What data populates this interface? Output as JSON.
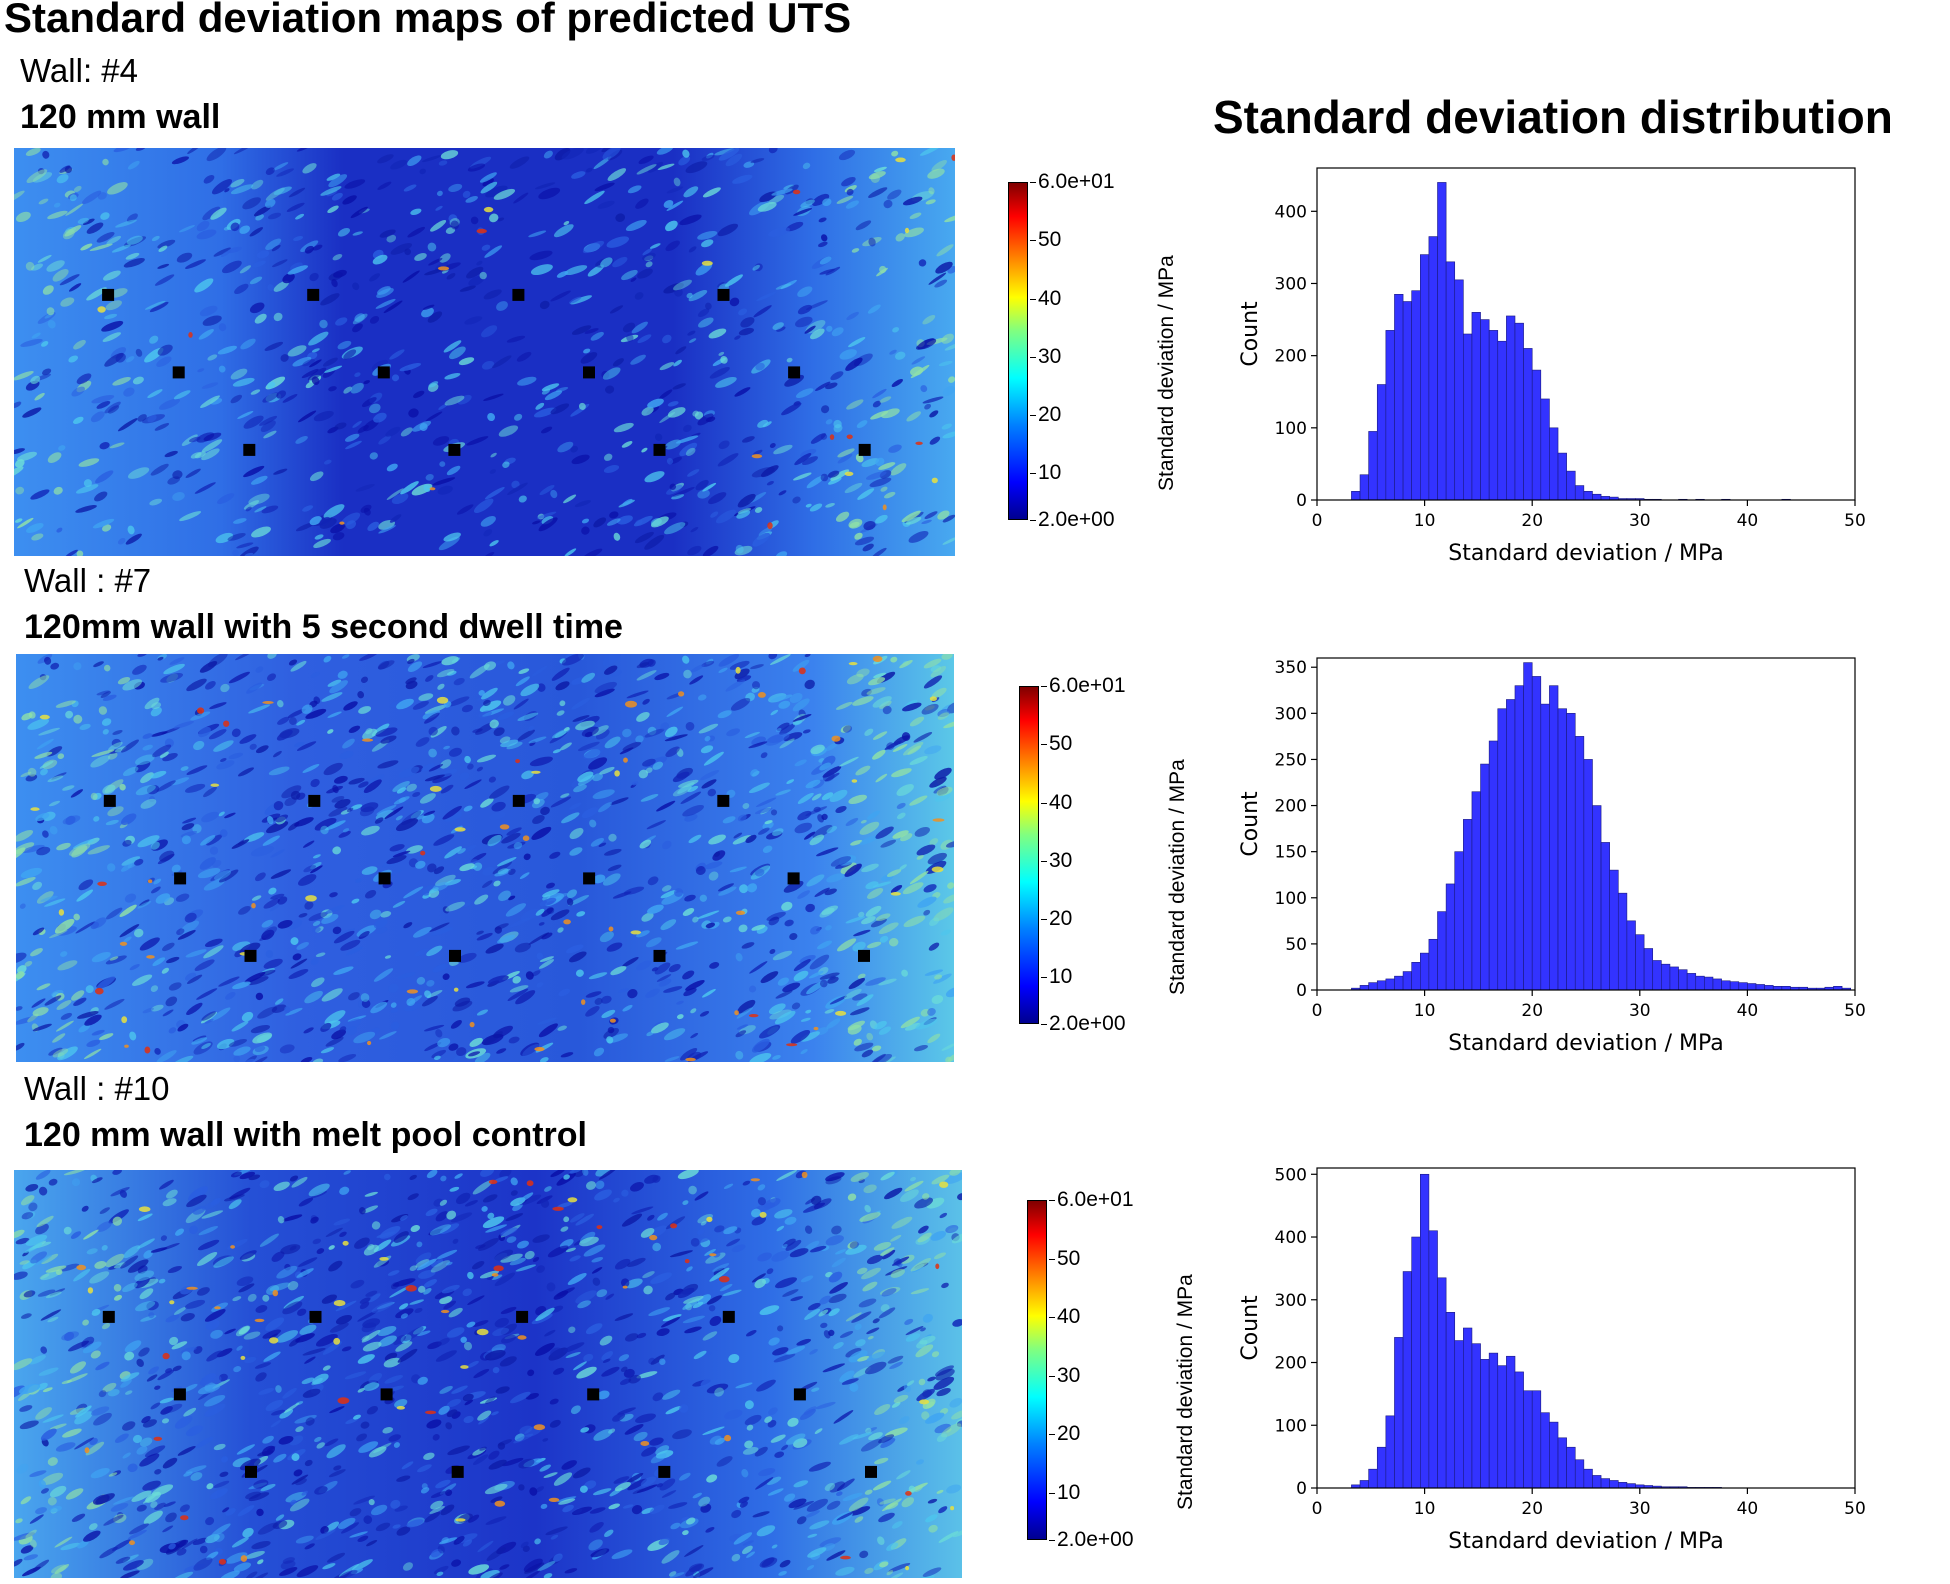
{
  "title": "Standard deviation maps of predicted UTS",
  "distribution_title": "Standard deviation distribution",
  "walls": [
    {
      "id": "Wall: #4",
      "desc": "120 mm wall",
      "colorbar": {
        "ticks": [
          "6.0e+01",
          "50",
          "40",
          "30",
          "20",
          "10",
          "2.0e+00"
        ],
        "label": "Standard deviation / MPa"
      }
    },
    {
      "id": "Wall : #7",
      "desc": "120mm wall with 5 second dwell time",
      "colorbar": {
        "ticks": [
          "6.0e+01",
          "50",
          "40",
          "30",
          "20",
          "10",
          "2.0e+00"
        ],
        "label": "Standard deviation / MPa"
      }
    },
    {
      "id": "Wall : #10",
      "desc": "120 mm wall with melt pool control",
      "colorbar": {
        "ticks": [
          "6.0e+01",
          "50",
          "40",
          "30",
          "20",
          "10",
          "2.0e+00"
        ],
        "label": "Standard deviation / MPa"
      }
    }
  ],
  "chart_data": [
    {
      "type": "bar",
      "bin_start": 0,
      "bin_width": 0.8,
      "xlim": [
        0,
        50
      ],
      "ylim": [
        0,
        460
      ],
      "xticks": [
        0,
        10,
        20,
        30,
        40,
        50
      ],
      "yticks": [
        0,
        100,
        200,
        300,
        400
      ],
      "xlabel": "Standard deviation / MPa",
      "ylabel": "Count",
      "color": "#3333ff",
      "values": [
        0,
        0,
        0,
        0,
        12,
        35,
        95,
        160,
        235,
        285,
        275,
        290,
        340,
        365,
        440,
        330,
        305,
        230,
        260,
        250,
        235,
        220,
        255,
        245,
        210,
        180,
        140,
        100,
        65,
        40,
        20,
        12,
        8,
        5,
        4,
        2,
        2,
        2,
        1,
        1,
        0,
        0,
        1,
        0,
        1,
        0,
        0,
        1,
        0,
        0,
        0,
        0,
        0,
        0,
        1,
        0,
        0,
        0,
        0,
        0,
        0,
        0,
        0
      ]
    },
    {
      "type": "bar",
      "bin_start": 0,
      "bin_width": 0.8,
      "xlim": [
        0,
        50
      ],
      "ylim": [
        0,
        360
      ],
      "xticks": [
        0,
        10,
        20,
        30,
        40,
        50
      ],
      "yticks": [
        0,
        50,
        100,
        150,
        200,
        250,
        300,
        350
      ],
      "xlabel": "Standard deviation / MPa",
      "ylabel": "Count",
      "color": "#3333ff",
      "values": [
        0,
        0,
        0,
        0,
        2,
        5,
        8,
        10,
        12,
        15,
        20,
        30,
        40,
        55,
        85,
        115,
        150,
        185,
        215,
        245,
        270,
        305,
        315,
        330,
        355,
        340,
        310,
        330,
        305,
        300,
        275,
        250,
        200,
        160,
        130,
        105,
        75,
        60,
        45,
        32,
        28,
        25,
        22,
        18,
        15,
        14,
        12,
        10,
        9,
        8,
        7,
        6,
        5,
        4,
        4,
        3,
        3,
        2,
        2,
        3,
        4,
        2,
        0
      ]
    },
    {
      "type": "bar",
      "bin_start": 0,
      "bin_width": 0.8,
      "xlim": [
        0,
        50
      ],
      "ylim": [
        0,
        510
      ],
      "xticks": [
        0,
        10,
        20,
        30,
        40,
        50
      ],
      "yticks": [
        0,
        100,
        200,
        300,
        400,
        500
      ],
      "xlabel": "Standard deviation / MPa",
      "ylabel": "Count",
      "color": "#3333ff",
      "values": [
        0,
        0,
        0,
        0,
        5,
        12,
        30,
        65,
        115,
        240,
        345,
        400,
        500,
        410,
        335,
        280,
        235,
        255,
        230,
        205,
        215,
        195,
        210,
        185,
        155,
        155,
        120,
        105,
        80,
        65,
        45,
        30,
        20,
        15,
        12,
        9,
        7,
        5,
        4,
        3,
        2,
        2,
        2,
        1,
        1,
        1,
        1,
        0,
        0,
        0,
        0,
        0,
        0,
        0,
        0,
        0,
        0,
        0,
        0,
        0,
        0,
        0,
        0
      ]
    }
  ]
}
